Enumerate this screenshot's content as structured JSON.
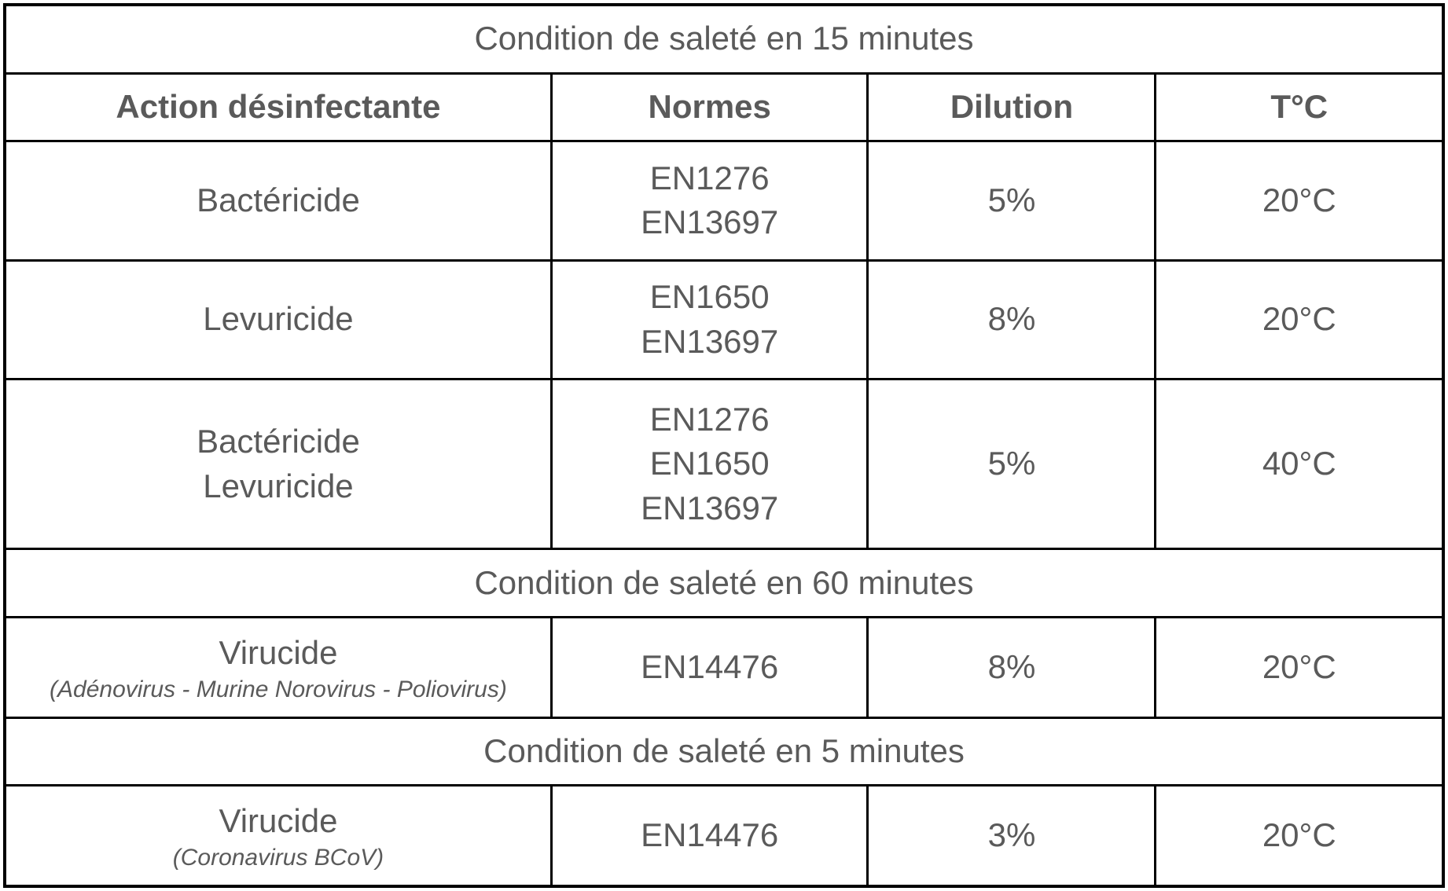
{
  "table": {
    "border_color": "#000000",
    "text_color": "#5a5a5a",
    "background_color": "#ffffff",
    "font_family": "Century Gothic / geometric sans",
    "base_fontsize_pt": 32,
    "sub_fontsize_pt": 22,
    "columns": [
      {
        "key": "action",
        "label": "Action désinfectante",
        "width_pct": 38
      },
      {
        "key": "normes",
        "label": "Normes",
        "width_pct": 22
      },
      {
        "key": "dilution",
        "label": "Dilution",
        "width_pct": 20
      },
      {
        "key": "temp",
        "label": "T°C",
        "width_pct": 20
      }
    ],
    "sections": {
      "s15": "Condition de saleté en 15 minutes",
      "s60": "Condition de saleté en 60 minutes",
      "s5": "Condition de saleté en 5 minutes"
    },
    "rows": {
      "r1": {
        "action": [
          "Bactéricide"
        ],
        "normes": [
          "EN1276",
          "EN13697"
        ],
        "dilution": "5%",
        "temp": "20°C"
      },
      "r2": {
        "action": [
          "Levuricide"
        ],
        "normes": [
          "EN1650",
          "EN13697"
        ],
        "dilution": "8%",
        "temp": "20°C"
      },
      "r3": {
        "action": [
          "Bactéricide",
          "Levuricide"
        ],
        "normes": [
          "EN1276",
          "EN1650",
          "EN13697"
        ],
        "dilution": "5%",
        "temp": "40°C"
      },
      "r4": {
        "action_main": "Virucide",
        "action_sub": "(Adénovirus - Murine Norovirus - Poliovirus)",
        "normes": [
          "EN14476"
        ],
        "dilution": "8%",
        "temp": "20°C"
      },
      "r5": {
        "action_main": "Virucide",
        "action_sub": "(Coronavirus BCoV)",
        "normes": [
          "EN14476"
        ],
        "dilution": "3%",
        "temp": "20°C"
      }
    }
  }
}
